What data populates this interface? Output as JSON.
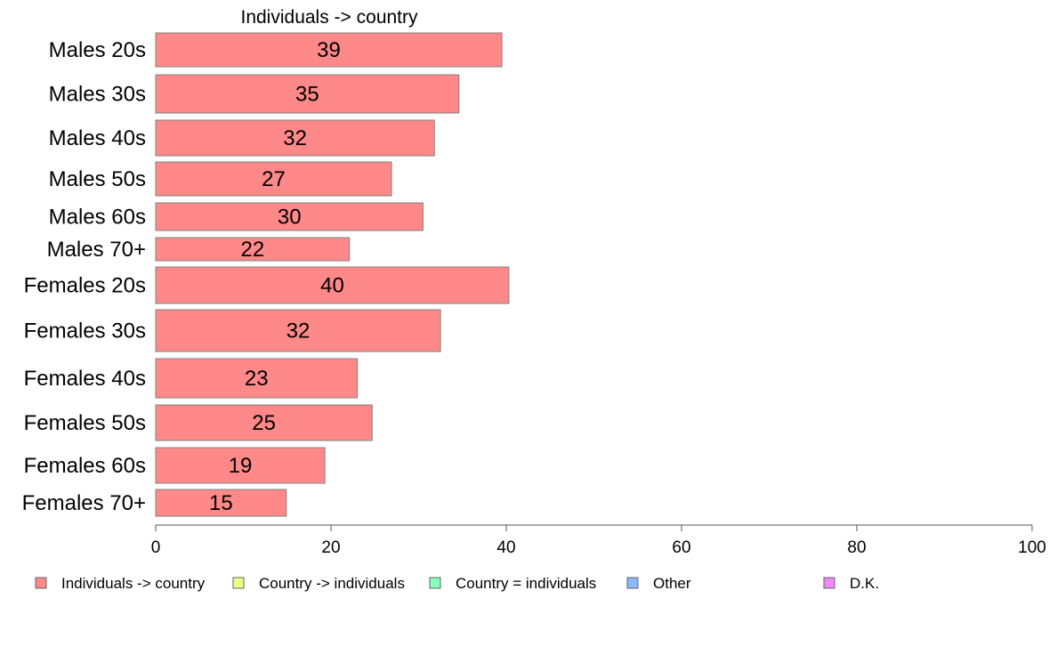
{
  "chart_data": {
    "type": "bar",
    "orientation": "horizontal",
    "title": "Individuals -> country",
    "categories": [
      "Males 20s",
      "Males 30s",
      "Males 40s",
      "Males 50s",
      "Males 60s",
      "Males 70+",
      "Females 20s",
      "Females 30s",
      "Females 40s",
      "Females 50s",
      "Females 60s",
      "Females 70+"
    ],
    "series": [
      {
        "name": "Individuals -> country",
        "color": "#FF8888",
        "values": [
          39.5,
          34.6,
          31.8,
          26.9,
          30.5,
          22.1,
          40.3,
          32.5,
          23.0,
          24.7,
          19.3,
          14.9
        ],
        "labels": [
          "39",
          "35",
          "32",
          "27",
          "30",
          "22",
          "40",
          "32",
          "23",
          "25",
          "19",
          "15"
        ]
      }
    ],
    "xlim": [
      0,
      100
    ],
    "xticks": [
      "0",
      "20",
      "40",
      "60",
      "80",
      "100"
    ],
    "bar_outline_color": "#808080",
    "legend": [
      {
        "name": "Individuals -> country",
        "color": "#FF8888"
      },
      {
        "name": "Country -> individuals",
        "color": "#EEFF88"
      },
      {
        "name": "Country = individuals",
        "color": "#88FFBB"
      },
      {
        "name": "Other",
        "color": "#88BBFF"
      },
      {
        "name": "D.K.",
        "color": "#EE88FF"
      }
    ],
    "legend_position": "bottom",
    "grid": false
  }
}
